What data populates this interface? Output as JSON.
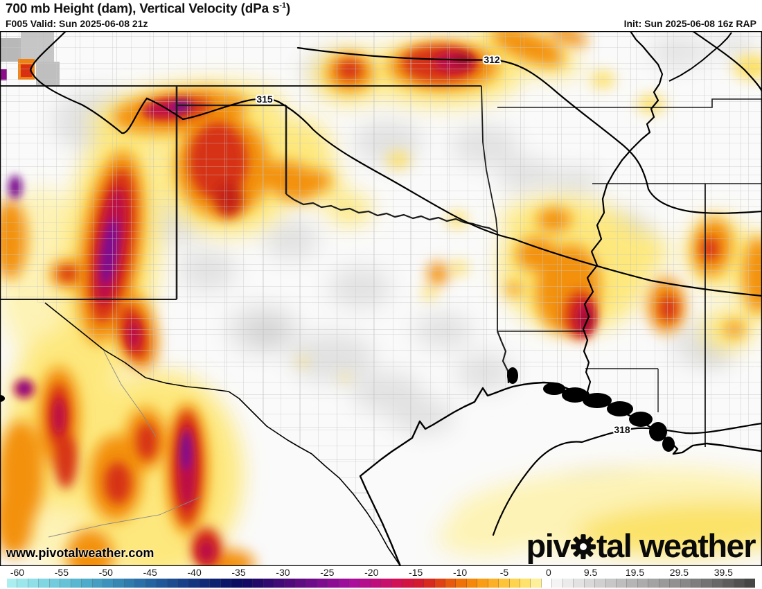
{
  "header": {
    "title_prefix": "700 mb Height (dam), Vertical Velocity (dPa s",
    "title_sup": "-1",
    "title_suffix": ")",
    "valid": "F005 Valid: Sun 2025-06-08 21z",
    "init": "Init: Sun 2025-06-08 16z RAP"
  },
  "map": {
    "watermark": "www.pivotalweather.com",
    "contours": [
      {
        "label": "312"
      },
      {
        "label": "315"
      },
      {
        "label": "318"
      }
    ]
  },
  "brand": {
    "part1": "piv",
    "part2": "tal weather",
    "gear_icon": "gear-icon"
  },
  "colorbar": {
    "units": "dPa/s",
    "zero_pct": 71.99,
    "neg_pct_per_unit": 1.162,
    "pos_pct_per_unit": 0.581,
    "ticks": [
      -60,
      -55,
      -50,
      -45,
      -40,
      -35,
      -30,
      -25,
      -20,
      -15,
      -10,
      -5,
      0,
      9.5,
      19.5,
      29.5,
      39.5
    ],
    "colors": [
      "#aaeef0",
      "#9ce7ec",
      "#8edfe8",
      "#80d6e3",
      "#72ccdd",
      "#66c2d7",
      "#5ab7d1",
      "#4fabca",
      "#469fc3",
      "#3e93bc",
      "#3787b5",
      "#307bae",
      "#2a6fa7",
      "#2563a0",
      "#205798",
      "#1c4b90",
      "#184088",
      "#143580",
      "#112a78",
      "#0e2070",
      "#0b1668",
      "#0a0d60",
      "#140a64",
      "#23096a",
      "#320970",
      "#410a76",
      "#500a7c",
      "#5f0b82",
      "#6e0b88",
      "#7d0c8e",
      "#8c0c94",
      "#9b0d9a",
      "#aa0e9b",
      "#b40e8d",
      "#be0f7d",
      "#c80f6b",
      "#d01057",
      "#d31441",
      "#d41a2e",
      "#d7291d",
      "#de4214",
      "#e75a0e",
      "#ef7209",
      "#f5880a",
      "#f99d15",
      "#fcb026",
      "#fdc339",
      "#fed44f",
      "#fee26c",
      "#feef9a",
      "#ffffff",
      "#f4f4f4",
      "#ebebeb",
      "#e2e2e2",
      "#d9d9d9",
      "#d0d0d0",
      "#c7c7c7",
      "#bebebe",
      "#b5b5b5",
      "#acacac",
      "#a3a3a3",
      "#9a9a9a",
      "#919191",
      "#888888",
      "#7e7e7e",
      "#737373",
      "#686868",
      "#5d5d5d",
      "#515151",
      "#454545"
    ]
  }
}
